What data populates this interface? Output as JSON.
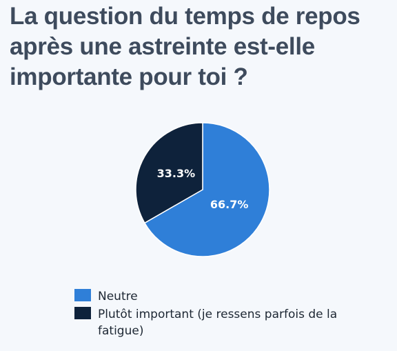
{
  "chart_data": {
    "type": "pie",
    "title": "La question du temps de repos après une astreinte est-elle importante pour toi ?",
    "slices": [
      {
        "label": "Neutre",
        "value": 66.7,
        "display": "66.7%",
        "color": "#2f7fd8"
      },
      {
        "label": "Plutôt important (je ressens parfois de la fatigue)",
        "value": 33.3,
        "display": "33.3%",
        "color": "#0e223b"
      }
    ],
    "legend_position": "bottom",
    "start_angle_deg": 0,
    "direction": "clockwise"
  }
}
